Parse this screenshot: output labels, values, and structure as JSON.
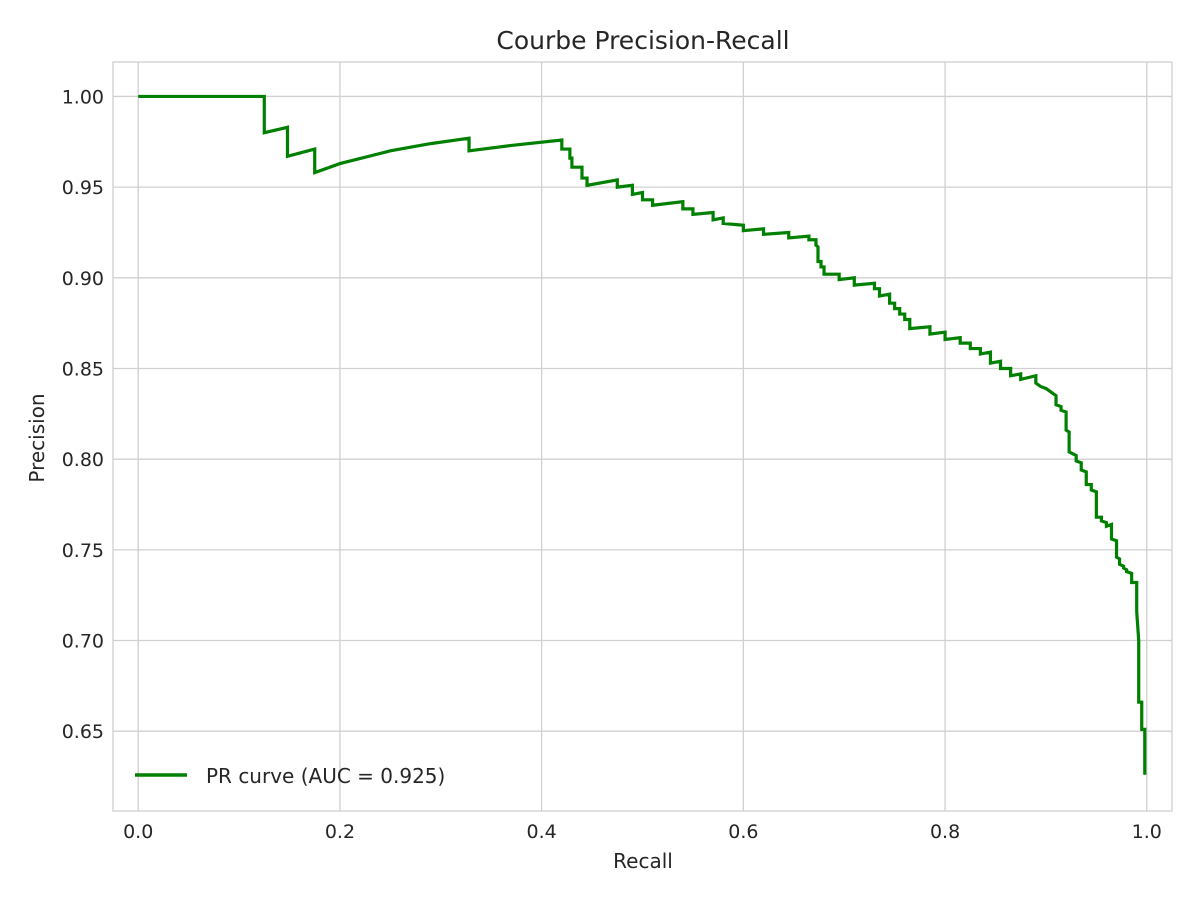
{
  "chart_data": {
    "type": "line",
    "title": "Courbe Precision-Recall",
    "xlabel": "Recall",
    "ylabel": "Precision",
    "xlim": [
      -0.025,
      1.025
    ],
    "ylim": [
      0.606,
      1.019
    ],
    "grid": true,
    "legend_position": "lower-left",
    "x_ticks": [
      0.0,
      0.2,
      0.4,
      0.6,
      0.8,
      1.0
    ],
    "x_tick_labels": [
      "0.0",
      "0.2",
      "0.4",
      "0.6",
      "0.8",
      "1.0"
    ],
    "y_ticks": [
      0.65,
      0.7,
      0.75,
      0.8,
      0.85,
      0.9,
      0.95,
      1.0
    ],
    "y_tick_labels": [
      "0.65",
      "0.70",
      "0.75",
      "0.80",
      "0.85",
      "0.90",
      "0.95",
      "1.00"
    ],
    "series": [
      {
        "name": "PR curve (AUC = 0.925)",
        "color": "#008000",
        "points": [
          [
            0.0,
            1.0
          ],
          [
            0.125,
            1.0
          ],
          [
            0.125,
            0.98
          ],
          [
            0.148,
            0.983
          ],
          [
            0.148,
            0.967
          ],
          [
            0.175,
            0.971
          ],
          [
            0.175,
            0.958
          ],
          [
            0.2,
            0.963
          ],
          [
            0.25,
            0.97
          ],
          [
            0.29,
            0.974
          ],
          [
            0.328,
            0.977
          ],
          [
            0.328,
            0.97
          ],
          [
            0.37,
            0.973
          ],
          [
            0.42,
            0.976
          ],
          [
            0.42,
            0.971
          ],
          [
            0.428,
            0.971
          ],
          [
            0.428,
            0.966
          ],
          [
            0.43,
            0.966
          ],
          [
            0.43,
            0.961
          ],
          [
            0.44,
            0.961
          ],
          [
            0.44,
            0.955
          ],
          [
            0.445,
            0.955
          ],
          [
            0.445,
            0.951
          ],
          [
            0.475,
            0.954
          ],
          [
            0.475,
            0.95
          ],
          [
            0.49,
            0.951
          ],
          [
            0.49,
            0.946
          ],
          [
            0.5,
            0.947
          ],
          [
            0.5,
            0.943
          ],
          [
            0.51,
            0.943
          ],
          [
            0.51,
            0.94
          ],
          [
            0.54,
            0.942
          ],
          [
            0.54,
            0.938
          ],
          [
            0.55,
            0.938
          ],
          [
            0.55,
            0.935
          ],
          [
            0.57,
            0.936
          ],
          [
            0.57,
            0.932
          ],
          [
            0.58,
            0.933
          ],
          [
            0.58,
            0.93
          ],
          [
            0.6,
            0.929
          ],
          [
            0.6,
            0.926
          ],
          [
            0.62,
            0.927
          ],
          [
            0.62,
            0.924
          ],
          [
            0.645,
            0.925
          ],
          [
            0.645,
            0.922
          ],
          [
            0.665,
            0.923
          ],
          [
            0.665,
            0.921
          ],
          [
            0.672,
            0.921
          ],
          [
            0.672,
            0.918
          ],
          [
            0.674,
            0.917
          ],
          [
            0.674,
            0.909
          ],
          [
            0.677,
            0.909
          ],
          [
            0.677,
            0.906
          ],
          [
            0.68,
            0.906
          ],
          [
            0.68,
            0.902
          ],
          [
            0.695,
            0.902
          ],
          [
            0.695,
            0.899
          ],
          [
            0.71,
            0.9
          ],
          [
            0.71,
            0.896
          ],
          [
            0.73,
            0.897
          ],
          [
            0.73,
            0.894
          ],
          [
            0.735,
            0.894
          ],
          [
            0.735,
            0.89
          ],
          [
            0.745,
            0.891
          ],
          [
            0.745,
            0.886
          ],
          [
            0.75,
            0.886
          ],
          [
            0.75,
            0.883
          ],
          [
            0.755,
            0.883
          ],
          [
            0.755,
            0.88
          ],
          [
            0.76,
            0.88
          ],
          [
            0.76,
            0.877
          ],
          [
            0.765,
            0.877
          ],
          [
            0.765,
            0.872
          ],
          [
            0.785,
            0.873
          ],
          [
            0.785,
            0.869
          ],
          [
            0.8,
            0.87
          ],
          [
            0.8,
            0.866
          ],
          [
            0.815,
            0.867
          ],
          [
            0.815,
            0.864
          ],
          [
            0.825,
            0.864
          ],
          [
            0.825,
            0.861
          ],
          [
            0.835,
            0.861
          ],
          [
            0.835,
            0.858
          ],
          [
            0.845,
            0.859
          ],
          [
            0.845,
            0.853
          ],
          [
            0.855,
            0.854
          ],
          [
            0.855,
            0.85
          ],
          [
            0.865,
            0.85
          ],
          [
            0.865,
            0.846
          ],
          [
            0.875,
            0.847
          ],
          [
            0.875,
            0.844
          ],
          [
            0.89,
            0.846
          ],
          [
            0.89,
            0.842
          ],
          [
            0.895,
            0.84
          ],
          [
            0.9,
            0.839
          ],
          [
            0.905,
            0.837
          ],
          [
            0.91,
            0.835
          ],
          [
            0.91,
            0.83
          ],
          [
            0.915,
            0.829
          ],
          [
            0.915,
            0.827
          ],
          [
            0.92,
            0.826
          ],
          [
            0.92,
            0.816
          ],
          [
            0.923,
            0.815
          ],
          [
            0.923,
            0.804
          ],
          [
            0.93,
            0.802
          ],
          [
            0.93,
            0.799
          ],
          [
            0.935,
            0.798
          ],
          [
            0.935,
            0.794
          ],
          [
            0.94,
            0.793
          ],
          [
            0.94,
            0.786
          ],
          [
            0.945,
            0.786
          ],
          [
            0.945,
            0.783
          ],
          [
            0.95,
            0.782
          ],
          [
            0.95,
            0.768
          ],
          [
            0.955,
            0.768
          ],
          [
            0.955,
            0.766
          ],
          [
            0.96,
            0.765
          ],
          [
            0.96,
            0.763
          ],
          [
            0.965,
            0.764
          ],
          [
            0.965,
            0.756
          ],
          [
            0.97,
            0.755
          ],
          [
            0.97,
            0.746
          ],
          [
            0.973,
            0.745
          ],
          [
            0.973,
            0.742
          ],
          [
            0.977,
            0.741
          ],
          [
            0.977,
            0.74
          ],
          [
            0.98,
            0.739
          ],
          [
            0.98,
            0.738
          ],
          [
            0.985,
            0.737
          ],
          [
            0.985,
            0.732
          ],
          [
            0.99,
            0.732
          ],
          [
            0.99,
            0.716
          ],
          [
            0.992,
            0.7
          ],
          [
            0.992,
            0.666
          ],
          [
            0.995,
            0.666
          ],
          [
            0.995,
            0.651
          ],
          [
            0.998,
            0.651
          ],
          [
            0.998,
            0.626
          ]
        ]
      }
    ]
  }
}
